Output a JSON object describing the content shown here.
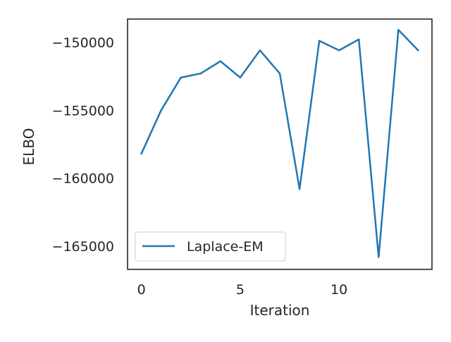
{
  "chart_data": {
    "type": "line",
    "title": "",
    "xlabel": "Iteration",
    "ylabel": "ELBO",
    "xlim": [
      -0.7,
      14.7
    ],
    "ylim": [
      -166700,
      -148300
    ],
    "xticks": [
      0,
      5,
      10
    ],
    "yticks": [
      -150000,
      -155000,
      -160000,
      -165000
    ],
    "ytick_labels": [
      "−150000",
      "−155000",
      "−160000",
      "−165000"
    ],
    "grid": false,
    "legend_position": "lower-left",
    "series": [
      {
        "name": "Laplace-EM",
        "color": "#1f77b4",
        "x": [
          0,
          1,
          2,
          3,
          4,
          5,
          6,
          7,
          8,
          9,
          10,
          11,
          12,
          13,
          14
        ],
        "y": [
          -158200,
          -155000,
          -152600,
          -152300,
          -151400,
          -152600,
          -150600,
          -152300,
          -160800,
          -149900,
          -150600,
          -149800,
          -165800,
          -149100,
          -150600
        ]
      }
    ]
  }
}
